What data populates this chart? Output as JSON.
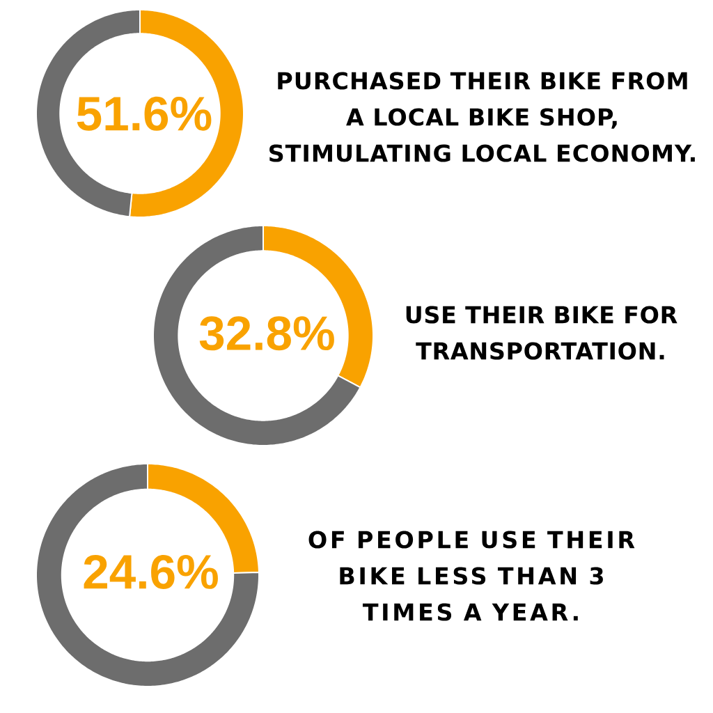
{
  "chart_data": [
    {
      "type": "donut",
      "categories": [
        null,
        null
      ],
      "values": [
        51.6,
        48.4
      ],
      "colors": [
        "#f9a200",
        "#6d6d6d"
      ],
      "value_labels": [
        "51.6%",
        null
      ],
      "annotations": [
        "PURCHASED THEIR BIKE FROM",
        "A LOCAL BIKE SHOP,",
        "STIMULATING LOCAL ECONOMY."
      ]
    },
    {
      "type": "donut",
      "categories": [
        null,
        null
      ],
      "values": [
        32.8,
        67.2
      ],
      "colors": [
        "#f9a200",
        "#6d6d6d"
      ],
      "value_labels": [
        "32.8%",
        null
      ],
      "annotations": [
        "USE THEIR BIKE FOR",
        "TRANSPORTATION."
      ]
    },
    {
      "type": "donut",
      "categories": [
        null,
        null
      ],
      "values": [
        24.6,
        75.4
      ],
      "colors": [
        "#f9a200",
        "#6d6d6d"
      ],
      "value_labels": [
        "24.6%",
        null
      ],
      "annotations": [
        "OF PEOPLE USE THEIR",
        "BIKE LESS THAN 3",
        "TIMES A YEAR."
      ]
    }
  ]
}
